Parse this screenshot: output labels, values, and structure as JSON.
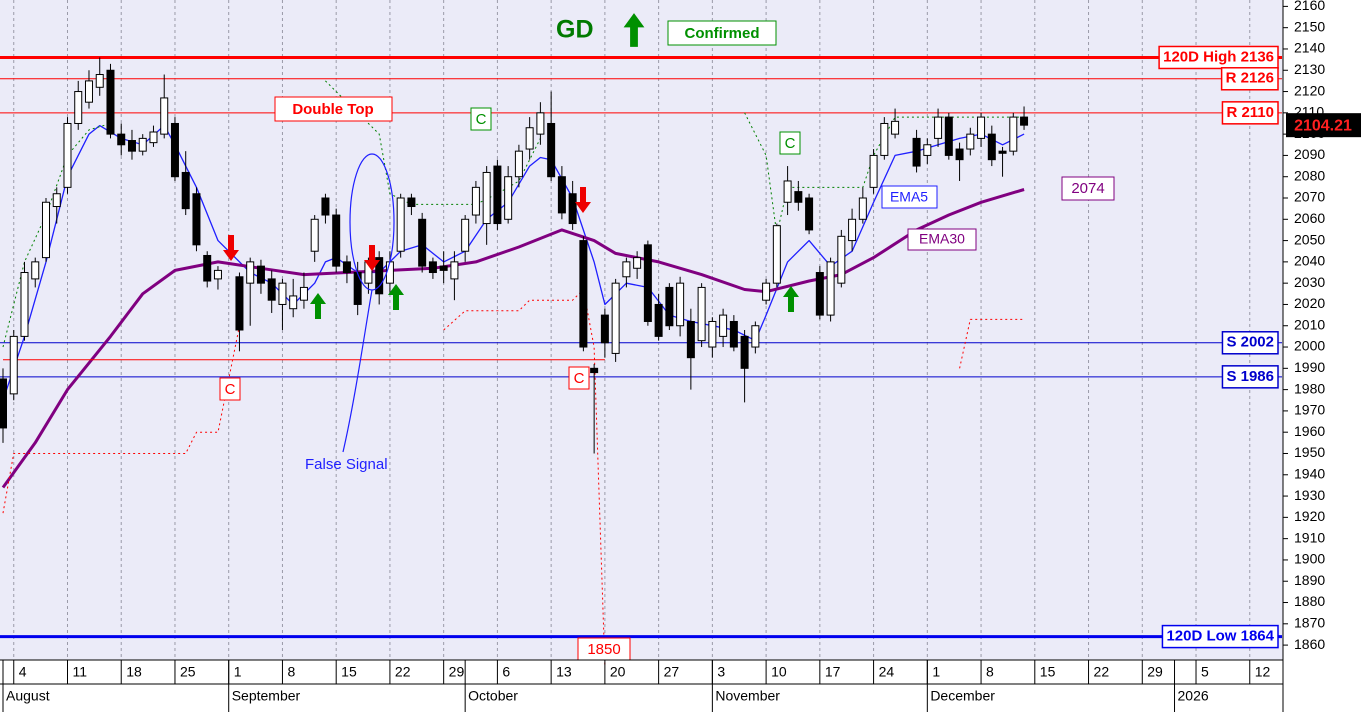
{
  "chart_data": {
    "type": "candlestick",
    "title": "GD",
    "x": [
      "Aug 1",
      "Aug 4",
      "Aug 5",
      "Aug 6",
      "Aug 7",
      "Aug 8",
      "Aug 11",
      "Aug 12",
      "Aug 13",
      "Aug 14",
      "Aug 15",
      "Aug 18",
      "Aug 19",
      "Aug 20",
      "Aug 21",
      "Aug 22",
      "Aug 25",
      "Aug 26",
      "Aug 27",
      "Aug 28",
      "Aug 29",
      "Sep 2",
      "Sep 3",
      "Sep 4",
      "Sep 5",
      "Sep 8",
      "Sep 9",
      "Sep 10",
      "Sep 11",
      "Sep 12",
      "Sep 15",
      "Sep 16",
      "Sep 17",
      "Sep 18",
      "Sep 19",
      "Sep 22",
      "Sep 23",
      "Sep 24",
      "Sep 25",
      "Sep 26",
      "Sep 29",
      "Sep 30",
      "Oct 1",
      "Oct 2",
      "Oct 3",
      "Oct 6",
      "Oct 7",
      "Oct 8",
      "Oct 9",
      "Oct 10",
      "Oct 13",
      "Oct 14",
      "Oct 15",
      "Oct 16",
      "Oct 17",
      "Oct 20",
      "Oct 21",
      "Oct 22",
      "Oct 23",
      "Oct 24",
      "Oct 27",
      "Oct 28",
      "Oct 29",
      "Oct 30",
      "Oct 31",
      "Nov 3",
      "Nov 4",
      "Nov 5",
      "Nov 6",
      "Nov 7",
      "Nov 10",
      "Nov 11",
      "Nov 12",
      "Nov 13",
      "Nov 14",
      "Nov 17",
      "Nov 18",
      "Nov 19",
      "Nov 20",
      "Nov 21",
      "Nov 24",
      "Nov 25",
      "Nov 26",
      "Nov 28",
      "Dec 1",
      "Dec 2",
      "Dec 3",
      "Dec 4",
      "Dec 5",
      "Dec 8",
      "Dec 9",
      "Dec 10",
      "Dec 11",
      "Dec 12"
    ],
    "open": [
      1985,
      1978,
      2005,
      2032,
      2042,
      2066,
      2075,
      2105,
      2115,
      2122,
      2130,
      2100,
      2097,
      2092,
      2096,
      2100,
      2105,
      2082,
      2072,
      2043,
      2032,
      2033,
      2030,
      2038,
      2032,
      2020,
      2018,
      2022,
      2045,
      2070,
      2062,
      2040,
      2035,
      2030,
      2042,
      2030,
      2045,
      2070,
      2060,
      2040,
      2038,
      2032,
      2045,
      2062,
      2058,
      2085,
      2060,
      2080,
      2093,
      2100,
      2105,
      2080,
      2072,
      2050,
      1990,
      2015,
      1997,
      2033,
      2037,
      2048,
      2020,
      2028,
      2010,
      2012,
      2003,
      2000,
      2005,
      2012,
      2005,
      2000,
      2022,
      2030,
      2068,
      2073,
      2070,
      2035,
      2015,
      2030,
      2050,
      2060,
      2075,
      2090,
      2100,
      2098,
      2090,
      2098,
      2108,
      2093,
      2093,
      2098,
      2100,
      2092,
      2092,
      2108
    ],
    "high": [
      1990,
      2008,
      2040,
      2042,
      2070,
      2075,
      2108,
      2125,
      2130,
      2136,
      2133,
      2105,
      2102,
      2100,
      2104,
      2128,
      2108,
      2092,
      2075,
      2045,
      2038,
      2035,
      2042,
      2041,
      2036,
      2032,
      2032,
      2035,
      2062,
      2072,
      2065,
      2043,
      2040,
      2042,
      2045,
      2045,
      2072,
      2072,
      2063,
      2042,
      2045,
      2045,
      2062,
      2078,
      2085,
      2088,
      2085,
      2095,
      2108,
      2115,
      2120,
      2085,
      2078,
      2052,
      1992,
      2018,
      2032,
      2042,
      2045,
      2050,
      2025,
      2030,
      2033,
      2018,
      2030,
      2014,
      2018,
      2015,
      2008,
      2012,
      2032,
      2058,
      2085,
      2078,
      2072,
      2038,
      2042,
      2055,
      2065,
      2075,
      2093,
      2108,
      2112,
      2102,
      2098,
      2112,
      2110,
      2096,
      2103,
      2110,
      2104,
      2094,
      2110,
      2113
    ],
    "low": [
      1955,
      1975,
      2003,
      2028,
      2040,
      2058,
      2072,
      2102,
      2112,
      2118,
      2098,
      2090,
      2088,
      2090,
      2094,
      2098,
      2078,
      2062,
      2045,
      2028,
      2027,
      1998,
      2010,
      2025,
      2016,
      2008,
      2014,
      2018,
      2040,
      2058,
      2035,
      2030,
      2015,
      2025,
      2020,
      2025,
      2042,
      2062,
      2035,
      2032,
      2030,
      2022,
      2040,
      2058,
      2048,
      2055,
      2058,
      2075,
      2088,
      2095,
      2078,
      2060,
      2055,
      1998,
      1950,
      1995,
      1993,
      2028,
      2032,
      2010,
      2003,
      2008,
      2005,
      1980,
      2000,
      1995,
      2000,
      1998,
      1974,
      1997,
      2020,
      2028,
      2062,
      2064,
      2053,
      2013,
      2012,
      2028,
      2045,
      2058,
      2072,
      2088,
      2098,
      2082,
      2086,
      2094,
      2088,
      2078,
      2090,
      2094,
      2085,
      2080,
      2090,
      2102
    ],
    "close": [
      1962,
      2005,
      2035,
      2040,
      2068,
      2072,
      2105,
      2120,
      2125,
      2128,
      2100,
      2095,
      2092,
      2098,
      2101,
      2117,
      2080,
      2065,
      2048,
      2031,
      2036,
      2008,
      2040,
      2030,
      2022,
      2030,
      2024,
      2028,
      2060,
      2062,
      2038,
      2035,
      2020,
      2040,
      2025,
      2040,
      2070,
      2066,
      2038,
      2035,
      2036,
      2040,
      2060,
      2075,
      2082,
      2058,
      2080,
      2092,
      2103,
      2110,
      2080,
      2063,
      2058,
      2000,
      1988,
      2002,
      2030,
      2040,
      2042,
      2012,
      2005,
      2010,
      2030,
      1995,
      2028,
      2012,
      2015,
      2000,
      1990,
      2010,
      2030,
      2057,
      2078,
      2068,
      2055,
      2015,
      2040,
      2052,
      2060,
      2070,
      2090,
      2105,
      2106,
      2085,
      2095,
      2108,
      2090,
      2088,
      2100,
      2108,
      2088,
      2091,
      2108,
      2104.21
    ],
    "up_color": "#ffffff",
    "down_color": "#000000",
    "series": [
      {
        "name": "EMA5",
        "color": "#1f1fff",
        "width": 1.3,
        "x": [
          "Aug 1",
          "Aug 5",
          "Aug 7",
          "Aug 11",
          "Aug 13",
          "Aug 14",
          "Aug 18",
          "Aug 20",
          "Aug 22",
          "Aug 25",
          "Aug 27",
          "Aug 29",
          "Sep 3",
          "Sep 5",
          "Sep 9",
          "Sep 11",
          "Sep 12",
          "Sep 15",
          "Sep 17",
          "Sep 19",
          "Sep 23",
          "Sep 25",
          "Sep 29",
          "Oct 1",
          "Oct 3",
          "Oct 7",
          "Oct 9",
          "Oct 10",
          "Oct 13",
          "Oct 15",
          "Oct 17",
          "Oct 20",
          "Oct 22",
          "Oct 24",
          "Oct 28",
          "Oct 30",
          "Nov 3",
          "Nov 5",
          "Nov 7",
          "Nov 10",
          "Nov 12",
          "Nov 14",
          "Nov 18",
          "Nov 20",
          "Nov 24",
          "Nov 26",
          "Nov 28",
          "Dec 2",
          "Dec 4",
          "Dec 8",
          "Dec 10",
          "Dec 12"
        ],
        "values": [
          1975,
          2005,
          2040,
          2080,
          2100,
          2104,
          2098,
          2095,
          2104,
          2095,
          2075,
          2050,
          2035,
          2030,
          2020,
          2030,
          2040,
          2042,
          2035,
          2035,
          2045,
          2048,
          2040,
          2045,
          2060,
          2068,
          2085,
          2089,
          2088,
          2070,
          2040,
          2020,
          2030,
          2028,
          2015,
          2012,
          2010,
          2008,
          2003,
          2015,
          2040,
          2050,
          2038,
          2045,
          2068,
          2090,
          2092,
          2095,
          2098,
          2100,
          2095,
          2100
        ]
      },
      {
        "name": "EMA30",
        "color": "#800080",
        "width": 3,
        "x": [
          "Aug 1",
          "Aug 6",
          "Aug 11",
          "Aug 15",
          "Aug 20",
          "Aug 25",
          "Aug 29",
          "Sep 4",
          "Sep 10",
          "Sep 16",
          "Sep 22",
          "Sep 26",
          "Oct 2",
          "Oct 8",
          "Oct 14",
          "Oct 17",
          "Oct 21",
          "Oct 27",
          "Oct 31",
          "Nov 6",
          "Nov 10",
          "Nov 14",
          "Nov 19",
          "Nov 24",
          "Nov 28",
          "Dec 3",
          "Dec 8",
          "Dec 12"
        ],
        "values": [
          1934,
          1955,
          1980,
          2005,
          2025,
          2036,
          2040,
          2037,
          2034,
          2035,
          2036,
          2037,
          2040,
          2047,
          2055,
          2050,
          2044,
          2040,
          2034,
          2027,
          2026,
          2031,
          2034,
          2042,
          2055,
          2062,
          2068,
          2074
        ]
      },
      {
        "color": "#008000",
        "width": 1,
        "dash": "dotted",
        "x": [
          "Aug 1",
          "Aug 5",
          "Aug 7",
          "Aug 11",
          "Aug 13",
          "Aug 15",
          "Aug 18",
          "Sep 12",
          "Sep 19",
          "Sep 22",
          "Sep 24",
          "Oct 2",
          "Oct 6",
          "Oct 8",
          "Oct 10",
          "Oct 13",
          "Nov 6",
          "Nov 10",
          "Nov 11",
          "Nov 12",
          "Nov 21",
          "Nov 24",
          "Nov 26",
          "Dec 12"
        ],
        "values": [
          2000,
          2040,
          2062,
          2090,
          2102,
          2105,
          null,
          2125,
          2100,
          2072,
          2067,
          2067,
          2072,
          2078,
          2098,
          null,
          2110,
          2090,
          2053,
          2075,
          2075,
          2090,
          2108,
          2108
        ]
      },
      {
        "color": "#ff0000",
        "width": 1,
        "dash": "dotted",
        "x": [
          "Aug 1",
          "Aug 4",
          "Aug 26",
          "Aug 27",
          "Aug 29",
          "Sep 2",
          "Sep 3",
          "Sep 29",
          "Oct 1",
          "Oct 8",
          "Oct 9",
          "Oct 15",
          "Oct 16",
          "Oct 17",
          "Oct 20",
          "Oct 21",
          "Dec 4",
          "Dec 5",
          "Dec 12"
        ],
        "values": [
          1922,
          1950,
          1950,
          1960,
          1960,
          2010,
          null,
          2008,
          2017,
          2017,
          2022,
          2022,
          2027,
          2000,
          1850,
          null,
          1990,
          2013,
          2013
        ]
      },
      {
        "color": "#ff0000",
        "width": 1,
        "x": [
          "Aug 1",
          "Oct 20"
        ],
        "values": [
          1994,
          1994
        ]
      }
    ],
    "levels": [
      {
        "label": "120D High 2136",
        "value": 2136,
        "color": "#ff0000",
        "width": 3
      },
      {
        "label": "R 2126",
        "value": 2126,
        "color": "#ff0000",
        "width": 1
      },
      {
        "label": "R 2110",
        "value": 2110,
        "color": "#ff0000",
        "width": 1
      },
      {
        "label": "S 2002",
        "value": 2002,
        "color": "#0000cc",
        "width": 1
      },
      {
        "label": "S 1986",
        "value": 1986,
        "color": "#0000cc",
        "width": 1
      },
      {
        "label": "120D Low 1864",
        "value": 1864,
        "color": "#0000ee",
        "width": 3
      }
    ],
    "ylim": [
      1853,
      2163
    ],
    "yticks": [
      1860,
      1870,
      1880,
      1890,
      1900,
      1910,
      1920,
      1930,
      1940,
      1950,
      1960,
      1970,
      1980,
      1990,
      2000,
      2010,
      2020,
      2030,
      2040,
      2050,
      2060,
      2070,
      2080,
      2090,
      2100,
      2110,
      2120,
      2130,
      2140,
      2150,
      2160
    ],
    "xlim": [
      "Aug 1",
      "Jan 15"
    ],
    "xticks": [
      {
        "value": "Aug 4",
        "label": "4"
      },
      {
        "value": "Aug 11",
        "label": "11"
      },
      {
        "value": "Aug 18",
        "label": "18"
      },
      {
        "value": "Aug 25",
        "label": "25"
      },
      {
        "value": "Sep 1",
        "label": "1"
      },
      {
        "value": "Sep 8",
        "label": "8"
      },
      {
        "value": "Sep 15",
        "label": "15"
      },
      {
        "value": "Sep 22",
        "label": "22"
      },
      {
        "value": "Sep 29",
        "label": "29"
      },
      {
        "value": "Oct 6",
        "label": "6"
      },
      {
        "value": "Oct 13",
        "label": "13"
      },
      {
        "value": "Oct 20",
        "label": "20"
      },
      {
        "value": "Oct 27",
        "label": "27"
      },
      {
        "value": "Nov 3",
        "label": "3"
      },
      {
        "value": "Nov 10",
        "label": "10"
      },
      {
        "value": "Nov 17",
        "label": "17"
      },
      {
        "value": "Nov 24",
        "label": "24"
      },
      {
        "value": "Dec 1",
        "label": "1"
      },
      {
        "value": "Dec 8",
        "label": "8"
      },
      {
        "value": "Dec 15",
        "label": "15"
      },
      {
        "value": "Dec 22",
        "label": "22"
      },
      {
        "value": "Dec 29",
        "label": "29"
      },
      {
        "value": "Jan 5",
        "label": "5"
      },
      {
        "value": "Jan 12",
        "label": "12"
      }
    ],
    "month_ticks": [
      {
        "value": "Aug 1",
        "label": "August"
      },
      {
        "value": "Sep 1",
        "label": "September"
      },
      {
        "value": "Oct 1",
        "label": "October"
      },
      {
        "value": "Nov 3",
        "label": "November"
      },
      {
        "value": "Dec 1",
        "label": "December"
      },
      {
        "value": "Jan 1",
        "label": "2026"
      }
    ],
    "grid": "x",
    "annotations": {
      "confirmed": "Confirmed",
      "double_top": "Double Top",
      "false_signal": "False Signal",
      "c_marks": [
        "C",
        "C",
        "C",
        "C"
      ],
      "ema30_end": 2074,
      "stop_low": 1850
    }
  }
}
